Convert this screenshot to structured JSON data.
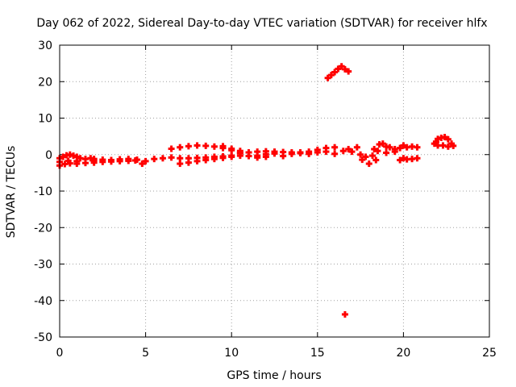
{
  "chart_data": {
    "type": "scatter",
    "title": "Day 062 of 2022, Sidereal Day-to-day VTEC variation (SDTVAR) for receiver hlfx",
    "xlabel": "GPS time / hours",
    "ylabel": "SDTVAR / TECUs",
    "xlim": [
      0,
      25
    ],
    "ylim": [
      -50,
      30
    ],
    "xticks": [
      0,
      5,
      10,
      15,
      20,
      25
    ],
    "yticks": [
      -50,
      -40,
      -30,
      -20,
      -10,
      0,
      10,
      20,
      30
    ],
    "grid": true,
    "marker": "plus",
    "series": [
      {
        "color": "#ff0000",
        "points": [
          [
            0.0,
            -1.0
          ],
          [
            0.2,
            -0.6
          ],
          [
            0.4,
            -0.2
          ],
          [
            0.6,
            0.0
          ],
          [
            0.8,
            -0.3
          ],
          [
            1.0,
            -0.6
          ],
          [
            1.2,
            -1.0
          ],
          [
            1.5,
            -1.2
          ],
          [
            1.8,
            -1.0
          ],
          [
            2.0,
            -1.2
          ],
          [
            0.0,
            -3.0
          ],
          [
            0.3,
            -2.6
          ],
          [
            0.6,
            -2.4
          ],
          [
            1.0,
            -2.5
          ],
          [
            1.5,
            -2.3
          ],
          [
            2.0,
            -2.2
          ],
          [
            2.5,
            -2.0
          ],
          [
            3.0,
            -1.9
          ],
          [
            3.5,
            -1.8
          ],
          [
            4.0,
            -1.7
          ],
          [
            4.4,
            -1.6
          ],
          [
            0.0,
            -2.0
          ],
          [
            0.5,
            -1.7
          ],
          [
            1.0,
            -1.8
          ],
          [
            2.0,
            -1.6
          ],
          [
            2.5,
            -1.4
          ],
          [
            3.0,
            -1.5
          ],
          [
            3.5,
            -1.3
          ],
          [
            4.0,
            -1.2
          ],
          [
            4.5,
            -1.4
          ],
          [
            4.8,
            -2.5
          ],
          [
            5.0,
            -1.8
          ],
          [
            5.5,
            -1.2
          ],
          [
            6.0,
            -1.0
          ],
          [
            6.5,
            -0.8
          ],
          [
            7.0,
            -1.0
          ],
          [
            7.5,
            -1.0
          ],
          [
            8.0,
            -0.9
          ],
          [
            8.5,
            -0.8
          ],
          [
            9.0,
            -0.6
          ],
          [
            9.5,
            -0.5
          ],
          [
            10.0,
            -0.3
          ],
          [
            7.0,
            -2.5
          ],
          [
            7.5,
            -2.2
          ],
          [
            8.0,
            -1.8
          ],
          [
            8.5,
            -1.5
          ],
          [
            9.0,
            -1.2
          ],
          [
            9.5,
            -0.9
          ],
          [
            10.0,
            -0.6
          ],
          [
            10.5,
            -0.3
          ],
          [
            6.5,
            1.6
          ],
          [
            7.0,
            2.0
          ],
          [
            7.5,
            2.3
          ],
          [
            8.0,
            2.5
          ],
          [
            8.5,
            2.4
          ],
          [
            9.0,
            2.2
          ],
          [
            9.5,
            1.8
          ],
          [
            10.0,
            1.2
          ],
          [
            10.5,
            0.5
          ],
          [
            10.5,
            0.4
          ],
          [
            11.0,
            0.6
          ],
          [
            11.5,
            0.8
          ],
          [
            12.0,
            0.9
          ],
          [
            12.5,
            0.8
          ],
          [
            13.0,
            0.7
          ],
          [
            13.5,
            0.6
          ],
          [
            14.0,
            0.4
          ],
          [
            14.5,
            0.8
          ],
          [
            15.0,
            1.3
          ],
          [
            15.5,
            1.8
          ],
          [
            16.0,
            2.0
          ],
          [
            16.5,
            1.0
          ],
          [
            11.0,
            -0.4
          ],
          [
            11.5,
            -0.3
          ],
          [
            12.0,
            0.1
          ],
          [
            12.5,
            0.3
          ],
          [
            13.0,
            -0.4
          ],
          [
            13.5,
            0.2
          ],
          [
            14.0,
            0.6
          ],
          [
            14.5,
            0.2
          ],
          [
            15.0,
            0.6
          ],
          [
            15.5,
            0.8
          ],
          [
            16.0,
            0.2
          ],
          [
            9.5,
            2.3
          ],
          [
            10.0,
            1.6
          ],
          [
            10.5,
            1.0
          ],
          [
            11.5,
            -0.8
          ],
          [
            12.0,
            -0.6
          ],
          [
            16.8,
            1.5
          ],
          [
            17.0,
            0.8
          ],
          [
            17.3,
            2.0
          ],
          [
            17.5,
            0.0
          ],
          [
            17.6,
            -1.4
          ],
          [
            17.8,
            -0.6
          ],
          [
            18.0,
            -2.5
          ],
          [
            18.2,
            -0.3
          ],
          [
            18.4,
            -1.5
          ],
          [
            18.5,
            1.0
          ],
          [
            18.6,
            2.8
          ],
          [
            18.8,
            3.0
          ],
          [
            19.0,
            2.2
          ],
          [
            19.2,
            2.0
          ],
          [
            19.5,
            1.5
          ],
          [
            19.8,
            1.8
          ],
          [
            20.0,
            2.5
          ],
          [
            20.2,
            2.0
          ],
          [
            20.5,
            2.2
          ],
          [
            20.8,
            2.0
          ],
          [
            18.3,
            1.5
          ],
          [
            19.0,
            0.5
          ],
          [
            19.5,
            0.8
          ],
          [
            20.0,
            -1.0
          ],
          [
            19.8,
            -1.5
          ],
          [
            20.2,
            -1.3
          ],
          [
            20.5,
            -1.2
          ],
          [
            20.8,
            -1.0
          ],
          [
            21.9,
            3.5
          ],
          [
            22.0,
            4.3
          ],
          [
            22.2,
            4.6
          ],
          [
            22.4,
            4.8
          ],
          [
            22.6,
            4.2
          ],
          [
            22.8,
            3.0
          ],
          [
            22.9,
            2.4
          ],
          [
            22.0,
            2.5
          ],
          [
            22.3,
            2.5
          ],
          [
            22.6,
            2.2
          ],
          [
            21.8,
            3.0
          ],
          [
            15.6,
            21.0
          ],
          [
            15.8,
            21.8
          ],
          [
            16.0,
            22.6
          ],
          [
            16.2,
            23.5
          ],
          [
            16.4,
            24.2
          ],
          [
            16.6,
            23.4
          ],
          [
            16.8,
            22.8
          ],
          [
            16.6,
            -43.8
          ]
        ]
      }
    ]
  }
}
